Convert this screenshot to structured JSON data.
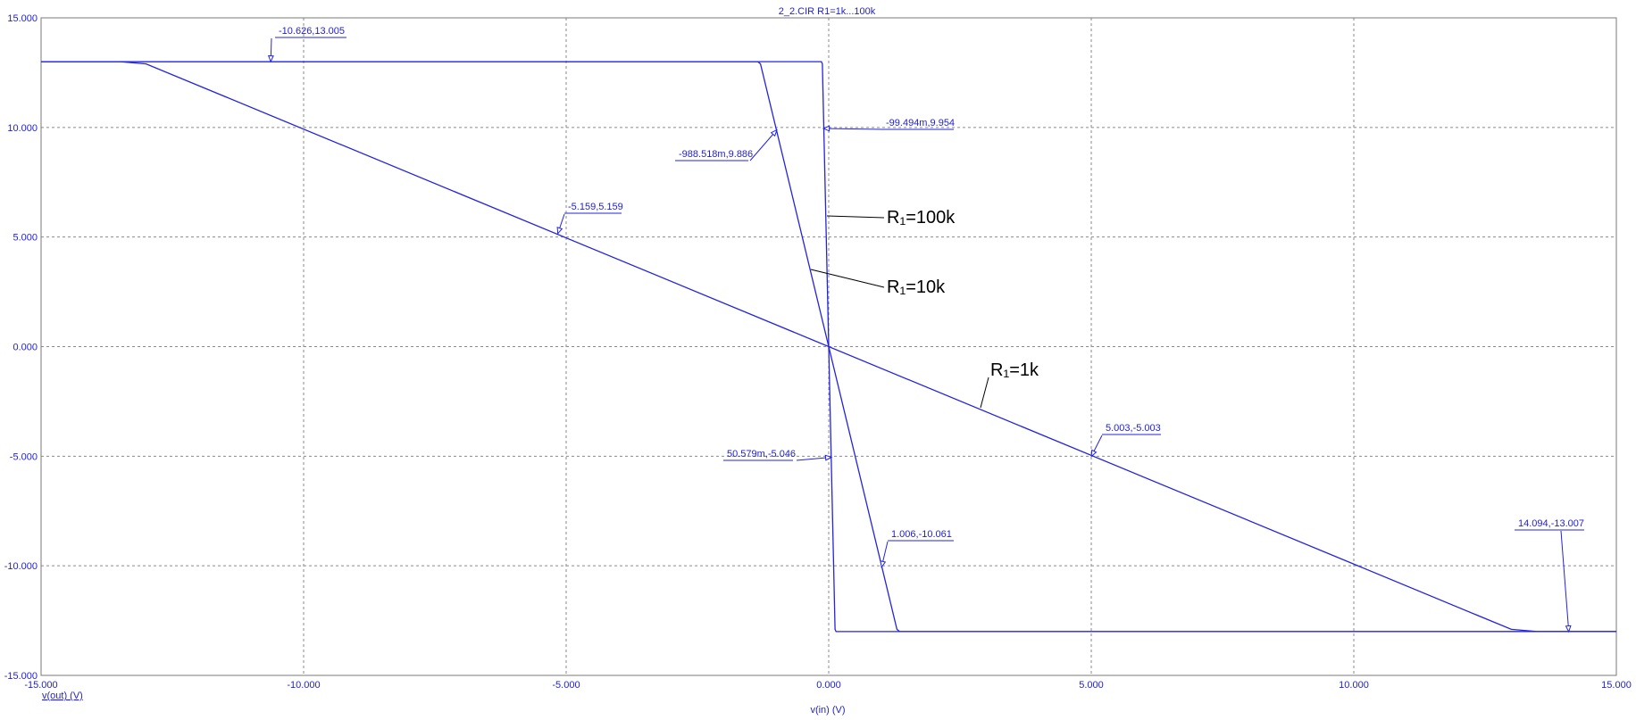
{
  "chart_data": {
    "type": "line",
    "title": "2_2.CIR R1=1k...100k",
    "xlabel": "v(in) (V)",
    "ylabel": "v(out) (V)",
    "xlim": [
      -15,
      15
    ],
    "ylim": [
      -15,
      15
    ],
    "grid": true,
    "x_ticks": [
      "-15.000",
      "-10.000",
      "-5.000",
      "0.000",
      "5.000",
      "10.000",
      "15.000"
    ],
    "y_ticks": [
      "15.000",
      "10.000",
      "5.000",
      "0.000",
      "-5.000",
      "-10.000",
      "-15.000"
    ],
    "series": [
      {
        "label": "R₁=1k",
        "x": [
          -15,
          -13.5,
          -13.0,
          13.0,
          13.5,
          15
        ],
        "y": [
          13.0,
          13.0,
          12.9,
          -12.9,
          -13.0,
          -13.0
        ]
      },
      {
        "label": "R₁=10k",
        "x": [
          -15,
          -1.35,
          -1.3,
          1.3,
          1.35,
          15
        ],
        "y": [
          13.0,
          13.0,
          12.9,
          -12.9,
          -13.0,
          -13.0
        ]
      },
      {
        "label": "R₁=100k",
        "x": [
          -15,
          -0.14,
          -0.12,
          0.12,
          0.14,
          15
        ],
        "y": [
          13.0,
          13.0,
          12.9,
          -12.9,
          -13.0,
          -13.0
        ]
      }
    ],
    "annotations": [
      {
        "text": "-10.626,13.005",
        "x": -10.626,
        "y": 13.005
      },
      {
        "text": "-988.518m,9.886",
        "x": -0.988518,
        "y": 9.886
      },
      {
        "text": "-99.494m,9.954",
        "x": -0.099494,
        "y": 9.954
      },
      {
        "text": "-5.159,5.159",
        "x": -5.159,
        "y": 5.159
      },
      {
        "text": "50.579m,-5.046",
        "x": 0.050579,
        "y": -5.046
      },
      {
        "text": "5.003,-5.003",
        "x": 5.003,
        "y": -5.003
      },
      {
        "text": "1.006,-10.061",
        "x": 1.006,
        "y": -10.061
      },
      {
        "text": "14.094,-13.007",
        "x": 14.094,
        "y": -13.007
      }
    ],
    "colors": {
      "trace": "#2323e0",
      "grid": "#8a8a8a",
      "text": "#1f1fd0"
    }
  }
}
